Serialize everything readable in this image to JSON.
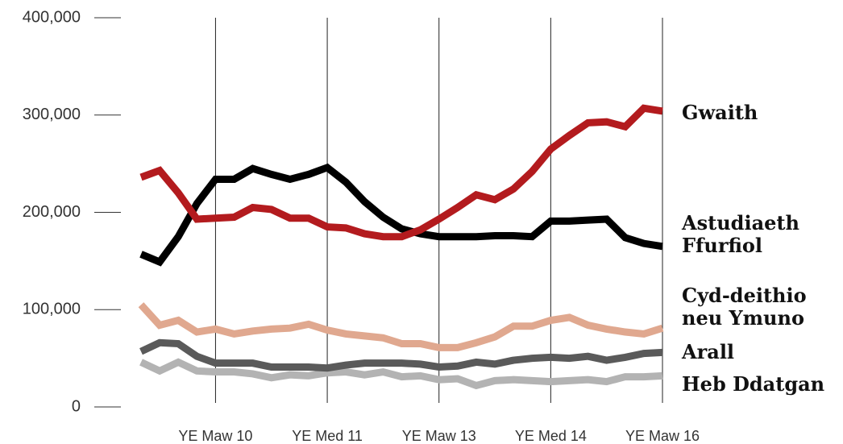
{
  "chart_data": {
    "type": "line",
    "categories": [
      null,
      null,
      null,
      null,
      "YE Maw 10",
      null,
      null,
      null,
      null,
      null,
      "YE Med 11",
      null,
      null,
      null,
      null,
      null,
      "YE Maw 13",
      null,
      null,
      null,
      null,
      null,
      "YE Med 14",
      null,
      null,
      null,
      null,
      null,
      "YE Maw 16"
    ],
    "series": [
      {
        "name": "Gwaith",
        "color": "#b31b1e",
        "values": [
          236000,
          243000,
          220000,
          193000,
          194000,
          195000,
          205000,
          203000,
          194000,
          194000,
          185000,
          184000,
          178000,
          175000,
          175000,
          182000,
          193000,
          205000,
          218000,
          213000,
          224000,
          242000,
          265000,
          279000,
          292000,
          293000,
          288000,
          307000,
          304000
        ]
      },
      {
        "name": "Astudiaeth Ffurfiol",
        "color": "#000000",
        "values": [
          157000,
          149000,
          175000,
          209000,
          234000,
          234000,
          245000,
          239000,
          234000,
          239000,
          246000,
          231000,
          211000,
          195000,
          183000,
          178000,
          175000,
          175000,
          175000,
          176000,
          176000,
          175000,
          191000,
          191000,
          192000,
          193000,
          174000,
          168000,
          165000
        ]
      },
      {
        "name": "Cyd-deithio neu Ymuno",
        "color": "#e0a88f",
        "values": [
          105000,
          84000,
          89000,
          77000,
          80000,
          75000,
          78000,
          80000,
          81000,
          85000,
          79000,
          75000,
          73000,
          71000,
          65000,
          65000,
          61000,
          61000,
          66000,
          72000,
          83000,
          83000,
          89000,
          92000,
          84000,
          80000,
          77000,
          75000,
          81000
        ]
      },
      {
        "name": "Arall",
        "color": "#5a5a5a",
        "values": [
          57000,
          66000,
          65000,
          52000,
          45000,
          45000,
          45000,
          41000,
          41000,
          41000,
          40000,
          43000,
          45000,
          45000,
          45000,
          44000,
          41000,
          42000,
          46000,
          44000,
          48000,
          50000,
          51000,
          50000,
          52000,
          48000,
          51000,
          55000,
          56000
        ]
      },
      {
        "name": "Heb Ddatgan",
        "color": "#b3b3b3",
        "values": [
          46000,
          37000,
          46000,
          37000,
          36000,
          36000,
          34000,
          30000,
          33000,
          32000,
          35000,
          36000,
          33000,
          36000,
          31000,
          32000,
          28000,
          29000,
          22000,
          27000,
          28000,
          27000,
          26000,
          27000,
          28000,
          26000,
          31000,
          31000,
          32000
        ]
      }
    ],
    "ylim": [
      0,
      400000
    ],
    "yticks": [
      0,
      {
        "value": 100000,
        "label": "100,000"
      },
      {
        "value": 200000,
        "label": "200,000"
      },
      {
        "value": 300000,
        "label": "300,000"
      },
      {
        "value": 400000,
        "label": "400,000"
      }
    ],
    "legend": "right"
  }
}
